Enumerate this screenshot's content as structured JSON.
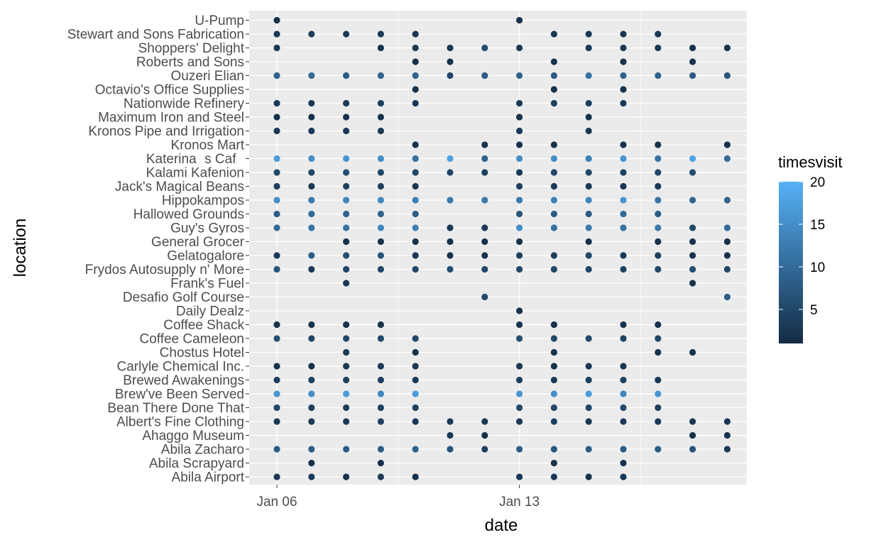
{
  "chart_data": {
    "type": "scatter",
    "xlabel": "date",
    "ylabel": "location",
    "x_start": "Jan 06",
    "x_end": "Jan 19",
    "x_ticks": [
      "Jan 06",
      "Jan 13"
    ],
    "legend": {
      "title": "timesvisit",
      "position": "right",
      "ticks": [
        5,
        10,
        15,
        20
      ],
      "range": [
        1,
        20
      ],
      "low_color": "#132B43",
      "high_color": "#56B1F7"
    },
    "panel_background": "#EBEBEB",
    "grid": true,
    "locations": [
      "Abila Airport",
      "Abila Scrapyard",
      "Abila Zacharo",
      "Ahaggo Museum",
      "Albert's Fine Clothing",
      "Bean There Done That",
      "Brew've Been Served",
      "Brewed Awakenings",
      "Carlyle Chemical Inc.",
      "Chostus Hotel",
      "Coffee Cameleon",
      "Coffee Shack",
      "Daily Dealz",
      "Desafio Golf Course",
      "Frank's Fuel",
      "Frydos Autosupply n' More",
      "Gelatogalore",
      "General Grocer",
      "Guy's Gyros",
      "Hallowed Grounds",
      "Hippokampos",
      "Jack's Magical Beans",
      "Kalami Kafenion",
      "Katerinas Caf",
      "Kronos Mart",
      "Kronos Pipe and Irrigation",
      "Maximum Iron and Steel",
      "Nationwide Refinery",
      "Octavio's Office Supplies",
      "Ouzeri Elian",
      "Roberts and Sons",
      "Shoppers' Delight",
      "Stewart and Sons Fabrication",
      "U-Pump"
    ],
    "points": [
      [
        "Abila Airport",
        [
          [
            6,
            3
          ],
          [
            7,
            3
          ],
          [
            8,
            2
          ],
          [
            9,
            3
          ],
          [
            10,
            2
          ],
          [
            13,
            3
          ],
          [
            14,
            3
          ],
          [
            15,
            2
          ],
          [
            16,
            3
          ]
        ]
      ],
      [
        "Abila Scrapyard",
        [
          [
            7,
            2
          ],
          [
            9,
            2
          ],
          [
            14,
            2
          ],
          [
            16,
            2
          ]
        ]
      ],
      [
        "Abila Zacharo",
        [
          [
            6,
            8
          ],
          [
            7,
            8
          ],
          [
            8,
            8
          ],
          [
            9,
            8
          ],
          [
            10,
            9
          ],
          [
            11,
            7
          ],
          [
            12,
            4
          ],
          [
            13,
            8
          ],
          [
            14,
            7
          ],
          [
            15,
            8
          ],
          [
            16,
            8
          ],
          [
            17,
            8
          ],
          [
            18,
            7
          ],
          [
            19,
            3
          ]
        ]
      ],
      [
        "Ahaggo Museum",
        [
          [
            11,
            3
          ],
          [
            12,
            2
          ],
          [
            18,
            2
          ],
          [
            19,
            2
          ]
        ]
      ],
      [
        "Albert's Fine Clothing",
        [
          [
            6,
            3
          ],
          [
            7,
            3
          ],
          [
            8,
            3
          ],
          [
            9,
            4
          ],
          [
            10,
            3
          ],
          [
            11,
            3
          ],
          [
            12,
            3
          ],
          [
            13,
            3
          ],
          [
            14,
            4
          ],
          [
            15,
            3
          ],
          [
            16,
            3
          ],
          [
            17,
            3
          ],
          [
            18,
            3
          ],
          [
            19,
            3
          ]
        ]
      ],
      [
        "Bean There Done That",
        [
          [
            6,
            5
          ],
          [
            7,
            4
          ],
          [
            8,
            4
          ],
          [
            9,
            4
          ],
          [
            10,
            4
          ],
          [
            13,
            5
          ],
          [
            14,
            5
          ],
          [
            15,
            5
          ],
          [
            16,
            5
          ],
          [
            17,
            4
          ]
        ]
      ],
      [
        "Brew've Been Served",
        [
          [
            6,
            16
          ],
          [
            7,
            15
          ],
          [
            8,
            17
          ],
          [
            9,
            14
          ],
          [
            10,
            17
          ],
          [
            13,
            16
          ],
          [
            14,
            15
          ],
          [
            15,
            17
          ],
          [
            16,
            14
          ],
          [
            17,
            16
          ]
        ]
      ],
      [
        "Brewed Awakenings",
        [
          [
            6,
            4
          ],
          [
            7,
            4
          ],
          [
            8,
            4
          ],
          [
            9,
            4
          ],
          [
            10,
            3
          ],
          [
            13,
            4
          ],
          [
            14,
            3
          ],
          [
            15,
            4
          ],
          [
            16,
            4
          ],
          [
            17,
            3
          ]
        ]
      ],
      [
        "Carlyle Chemical Inc.",
        [
          [
            6,
            2
          ],
          [
            7,
            2
          ],
          [
            8,
            3
          ],
          [
            9,
            3
          ],
          [
            10,
            3
          ],
          [
            13,
            3
          ],
          [
            14,
            2
          ],
          [
            15,
            3
          ],
          [
            16,
            3
          ]
        ]
      ],
      [
        "Chostus Hotel",
        [
          [
            8,
            3
          ],
          [
            10,
            2
          ],
          [
            14,
            2
          ],
          [
            17,
            2
          ],
          [
            18,
            2
          ]
        ]
      ],
      [
        "Coffee Cameleon",
        [
          [
            6,
            6
          ],
          [
            7,
            5
          ],
          [
            8,
            5
          ],
          [
            9,
            5
          ],
          [
            10,
            5
          ],
          [
            13,
            6
          ],
          [
            14,
            5
          ],
          [
            15,
            5
          ],
          [
            16,
            4
          ],
          [
            17,
            5
          ]
        ]
      ],
      [
        "Coffee Shack",
        [
          [
            6,
            2
          ],
          [
            7,
            2
          ],
          [
            8,
            2
          ],
          [
            9,
            2
          ],
          [
            13,
            2
          ],
          [
            14,
            2
          ],
          [
            16,
            2
          ],
          [
            17,
            2
          ]
        ]
      ],
      [
        "Daily Dealz",
        [
          [
            13,
            2
          ]
        ]
      ],
      [
        "Desafio Golf Course",
        [
          [
            12,
            5
          ],
          [
            19,
            8
          ]
        ]
      ],
      [
        "Frank's Fuel",
        [
          [
            8,
            3
          ],
          [
            18,
            2
          ]
        ]
      ],
      [
        "Frydos Autosupply n' More",
        [
          [
            6,
            7
          ],
          [
            7,
            3
          ],
          [
            8,
            5
          ],
          [
            9,
            5
          ],
          [
            10,
            5
          ],
          [
            11,
            6
          ],
          [
            12,
            5
          ],
          [
            13,
            5
          ],
          [
            14,
            5
          ],
          [
            15,
            5
          ],
          [
            16,
            4
          ],
          [
            17,
            5
          ],
          [
            18,
            6
          ],
          [
            19,
            5
          ]
        ]
      ],
      [
        "Gelatogalore",
        [
          [
            6,
            3
          ],
          [
            7,
            8
          ],
          [
            8,
            6
          ],
          [
            9,
            7
          ],
          [
            10,
            3
          ],
          [
            11,
            2
          ],
          [
            12,
            2
          ],
          [
            13,
            4
          ],
          [
            14,
            4
          ],
          [
            15,
            5
          ],
          [
            16,
            3
          ],
          [
            17,
            4
          ],
          [
            18,
            2
          ],
          [
            19,
            2
          ]
        ]
      ],
      [
        "General Grocer",
        [
          [
            8,
            2
          ],
          [
            9,
            2
          ],
          [
            10,
            2
          ],
          [
            11,
            2
          ],
          [
            12,
            2
          ],
          [
            13,
            2
          ],
          [
            15,
            2
          ],
          [
            17,
            2
          ],
          [
            18,
            2
          ],
          [
            19,
            2
          ]
        ]
      ],
      [
        "Guy's Gyros",
        [
          [
            6,
            10
          ],
          [
            7,
            11
          ],
          [
            8,
            11
          ],
          [
            9,
            14
          ],
          [
            10,
            13
          ],
          [
            11,
            3
          ],
          [
            12,
            3
          ],
          [
            13,
            15
          ],
          [
            14,
            11
          ],
          [
            15,
            12
          ],
          [
            16,
            11
          ],
          [
            17,
            12
          ],
          [
            18,
            5
          ],
          [
            19,
            10
          ]
        ]
      ],
      [
        "Hallowed Grounds",
        [
          [
            6,
            8
          ],
          [
            7,
            10
          ],
          [
            8,
            9
          ],
          [
            9,
            9
          ],
          [
            10,
            8
          ],
          [
            13,
            7
          ],
          [
            14,
            8
          ],
          [
            15,
            8
          ],
          [
            16,
            10
          ],
          [
            17,
            8
          ]
        ]
      ],
      [
        "Hippokampos",
        [
          [
            6,
            15
          ],
          [
            7,
            12
          ],
          [
            8,
            14
          ],
          [
            9,
            14
          ],
          [
            10,
            13
          ],
          [
            11,
            12
          ],
          [
            12,
            12
          ],
          [
            13,
            12
          ],
          [
            14,
            13
          ],
          [
            15,
            14
          ],
          [
            16,
            16
          ],
          [
            17,
            11
          ],
          [
            18,
            9
          ],
          [
            19,
            9
          ]
        ]
      ],
      [
        "Jack's Magical Beans",
        [
          [
            6,
            4
          ],
          [
            7,
            3
          ],
          [
            8,
            4
          ],
          [
            9,
            4
          ],
          [
            10,
            3
          ],
          [
            13,
            4
          ],
          [
            14,
            3
          ],
          [
            15,
            3
          ],
          [
            16,
            3
          ],
          [
            17,
            3
          ]
        ]
      ],
      [
        "Kalami Kafenion",
        [
          [
            6,
            5
          ],
          [
            7,
            5
          ],
          [
            8,
            6
          ],
          [
            9,
            5
          ],
          [
            10,
            5
          ],
          [
            11,
            5
          ],
          [
            12,
            4
          ],
          [
            13,
            3
          ],
          [
            14,
            5
          ],
          [
            15,
            5
          ],
          [
            16,
            4
          ],
          [
            17,
            5
          ],
          [
            18,
            6
          ]
        ]
      ],
      [
        "Katerinas Caf",
        [
          [
            6,
            17
          ],
          [
            7,
            15
          ],
          [
            8,
            16
          ],
          [
            9,
            15
          ],
          [
            10,
            11
          ],
          [
            11,
            18
          ],
          [
            12,
            9
          ],
          [
            13,
            15
          ],
          [
            14,
            15
          ],
          [
            15,
            13
          ],
          [
            16,
            16
          ],
          [
            17,
            11
          ],
          [
            18,
            18
          ],
          [
            19,
            10
          ]
        ]
      ],
      [
        "Kronos Mart",
        [
          [
            10,
            2
          ],
          [
            12,
            2
          ],
          [
            13,
            2
          ],
          [
            14,
            2
          ],
          [
            16,
            2
          ],
          [
            17,
            2
          ],
          [
            19,
            2
          ]
        ]
      ],
      [
        "Kronos Pipe and Irrigation",
        [
          [
            6,
            3
          ],
          [
            7,
            3
          ],
          [
            8,
            3
          ],
          [
            9,
            3
          ],
          [
            13,
            3
          ],
          [
            15,
            3
          ]
        ]
      ],
      [
        "Maximum Iron and Steel",
        [
          [
            6,
            2
          ],
          [
            7,
            2
          ],
          [
            8,
            2
          ],
          [
            9,
            2
          ],
          [
            13,
            2
          ],
          [
            15,
            2
          ]
        ]
      ],
      [
        "Nationwide Refinery",
        [
          [
            6,
            3
          ],
          [
            7,
            3
          ],
          [
            8,
            3
          ],
          [
            9,
            4
          ],
          [
            10,
            3
          ],
          [
            13,
            3
          ],
          [
            14,
            4
          ],
          [
            15,
            4
          ],
          [
            16,
            3
          ]
        ]
      ],
      [
        "Octavio's Office Supplies",
        [
          [
            10,
            2
          ],
          [
            14,
            2
          ],
          [
            16,
            2
          ]
        ]
      ],
      [
        "Ouzeri Elian",
        [
          [
            6,
            9
          ],
          [
            7,
            10
          ],
          [
            8,
            8
          ],
          [
            9,
            9
          ],
          [
            10,
            9
          ],
          [
            11,
            5
          ],
          [
            12,
            8
          ],
          [
            13,
            9
          ],
          [
            14,
            8
          ],
          [
            15,
            11
          ],
          [
            16,
            9
          ],
          [
            17,
            9
          ],
          [
            18,
            8
          ],
          [
            19,
            7
          ]
        ]
      ],
      [
        "Roberts and Sons",
        [
          [
            10,
            2
          ],
          [
            11,
            2
          ],
          [
            14,
            2
          ],
          [
            16,
            2
          ],
          [
            18,
            2
          ]
        ]
      ],
      [
        "Shoppers' Delight",
        [
          [
            6,
            3
          ],
          [
            9,
            2
          ],
          [
            10,
            3
          ],
          [
            11,
            3
          ],
          [
            12,
            6
          ],
          [
            13,
            3
          ],
          [
            15,
            3
          ],
          [
            16,
            3
          ],
          [
            17,
            3
          ],
          [
            18,
            2
          ],
          [
            19,
            2
          ]
        ]
      ],
      [
        "Stewart and Sons Fabrication",
        [
          [
            6,
            3
          ],
          [
            7,
            4
          ],
          [
            8,
            3
          ],
          [
            9,
            3
          ],
          [
            10,
            3
          ],
          [
            14,
            3
          ],
          [
            15,
            3
          ],
          [
            16,
            3
          ],
          [
            17,
            3
          ]
        ]
      ],
      [
        "U-Pump",
        [
          [
            6,
            2
          ],
          [
            13,
            2
          ]
        ]
      ]
    ]
  }
}
